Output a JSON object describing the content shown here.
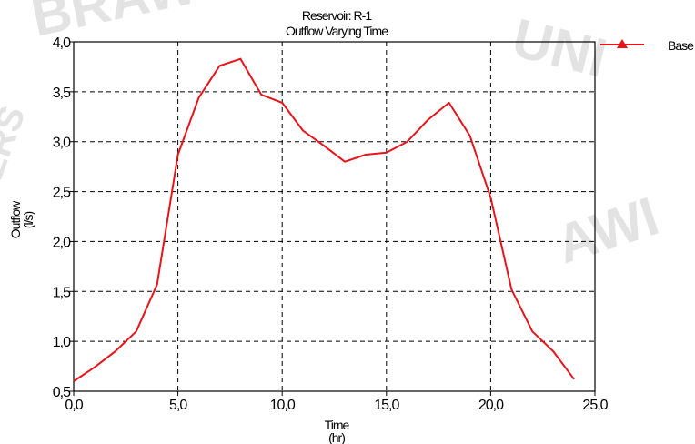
{
  "chart_data": {
    "type": "line",
    "title": "Reservoir: R-1",
    "subtitle": "Outflow Varying Time",
    "xlabel": "Time",
    "xunit": "(hr)",
    "ylabel": "Outflow",
    "yunit": "(l/s)",
    "xlim": [
      0,
      25
    ],
    "ylim": [
      0.5,
      4.0
    ],
    "x_ticks": [
      "0,0",
      "5,0",
      "10,0",
      "15,0",
      "20,0",
      "25,0"
    ],
    "y_ticks": [
      "0,5",
      "1,0",
      "1,5",
      "2,0",
      "2,5",
      "3,0",
      "3,5",
      "4,0"
    ],
    "grid": true,
    "legend_position": "top-right",
    "series": [
      {
        "name": "Base",
        "color": "#e8141b",
        "x": [
          0,
          1,
          2,
          3,
          4,
          5,
          6,
          7,
          8,
          9,
          10,
          11,
          12,
          13,
          14,
          15,
          16,
          17,
          18,
          19,
          20,
          21,
          22,
          23,
          24
        ],
        "y": [
          0.6,
          0.74,
          0.9,
          1.1,
          1.57,
          2.87,
          3.44,
          3.76,
          3.83,
          3.47,
          3.39,
          3.11,
          2.96,
          2.8,
          2.87,
          2.89,
          3.0,
          3.22,
          3.39,
          3.06,
          2.44,
          1.52,
          1.1,
          0.9,
          0.62
        ]
      }
    ]
  }
}
